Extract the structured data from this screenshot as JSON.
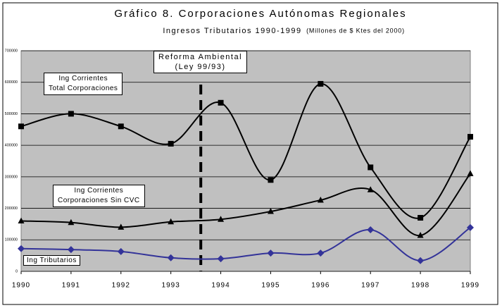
{
  "chart_data": {
    "type": "line",
    "title": "Gráfico 8. Corporaciones Autónomas Regionales",
    "subtitle": "Ingresos Tributarios 1990-1999",
    "subtitle_note": "(Millones de $ Ktes del 2000)",
    "annotation": "Reforma Ambiental\n(Ley 99/93)",
    "categories": [
      "1990",
      "1991",
      "1992",
      "1993",
      "1994",
      "1995",
      "1996",
      "1997",
      "1998",
      "1999"
    ],
    "series": [
      {
        "name": "Ing Corrientes\nTotal Corporaciones",
        "color": "#000000",
        "marker": "square",
        "values": [
          460000,
          500000,
          460000,
          405000,
          535000,
          290000,
          595000,
          330000,
          170000,
          427000
        ]
      },
      {
        "name": "Ing Corrientes\nCorporaciones Sin CVC",
        "color": "#000000",
        "marker": "triangle",
        "values": [
          160000,
          155000,
          140000,
          157000,
          165000,
          190000,
          226000,
          259000,
          114000,
          310000
        ]
      },
      {
        "name": "Ing Tributarios",
        "color": "#333399",
        "marker": "diamond",
        "values": [
          72000,
          69000,
          63000,
          43000,
          40000,
          58000,
          58000,
          132000,
          34000,
          139000
        ]
      }
    ],
    "ylim": [
      0,
      700000
    ],
    "yticks": [
      0,
      100000,
      200000,
      300000,
      400000,
      500000,
      600000,
      700000
    ],
    "grid": true
  }
}
